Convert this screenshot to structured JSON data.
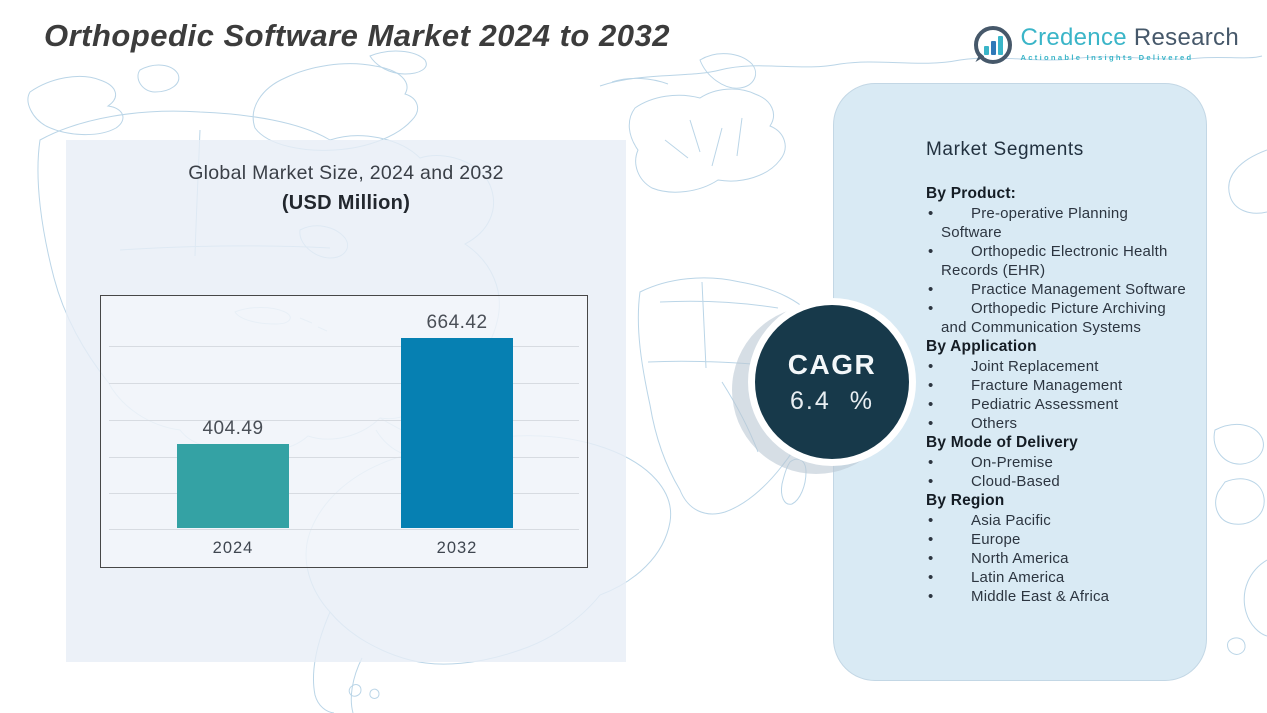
{
  "header": {
    "title": "Orthopedic Software Market 2024 to 2032",
    "logo": {
      "brand_first": "Credence",
      "brand_second": "Research",
      "tagline": "Actionable Insights Delivered"
    }
  },
  "chart": {
    "title_line1": "Global Market Size, 2024 and 2032",
    "title_line2": "(USD Million)"
  },
  "chart_data": {
    "type": "bar",
    "title": "Global Market Size, 2024 and 2032",
    "subtitle": "(USD Million)",
    "categories": [
      "2024",
      "2032"
    ],
    "values": [
      404.49,
      664.42
    ],
    "value_labels": [
      "404.49",
      "664.42"
    ],
    "bar_colors": [
      "#34a2a4",
      "#0680b2"
    ],
    "ylim": [
      200,
      700
    ],
    "grid": true,
    "legend": "none"
  },
  "cagr": {
    "label": "CAGR",
    "value": "6.4 %"
  },
  "segments": {
    "title": "Market Segments",
    "groups": [
      {
        "heading": "By  Product:",
        "items": [
          "Pre-operative Planning Software",
          "Orthopedic Electronic Health Records (EHR)",
          "Practice Management Software",
          "Orthopedic Picture Archiving and Communication Systems"
        ]
      },
      {
        "heading": "By Application",
        "items": [
          "Joint Replacement",
          "Fracture Management",
          "Pediatric Assessment",
          "Others"
        ]
      },
      {
        "heading": "By Mode of Delivery",
        "items": [
          "On-Premise",
          "Cloud-Based"
        ]
      },
      {
        "heading": "By Region",
        "items": [
          "Asia Pacific",
          "Europe",
          "North America",
          "Latin America",
          "Middle East & Africa"
        ]
      }
    ]
  },
  "colors": {
    "bar_2024": "#34a2a4",
    "bar_2032": "#0680b2",
    "cagr_circle": "#17394a",
    "panel_right": "#d9eaf4",
    "panel_left": "#e9eff6",
    "map_line": "#b7d3e6",
    "brand_teal": "#3ab5c8",
    "brand_dark": "#46586a"
  }
}
